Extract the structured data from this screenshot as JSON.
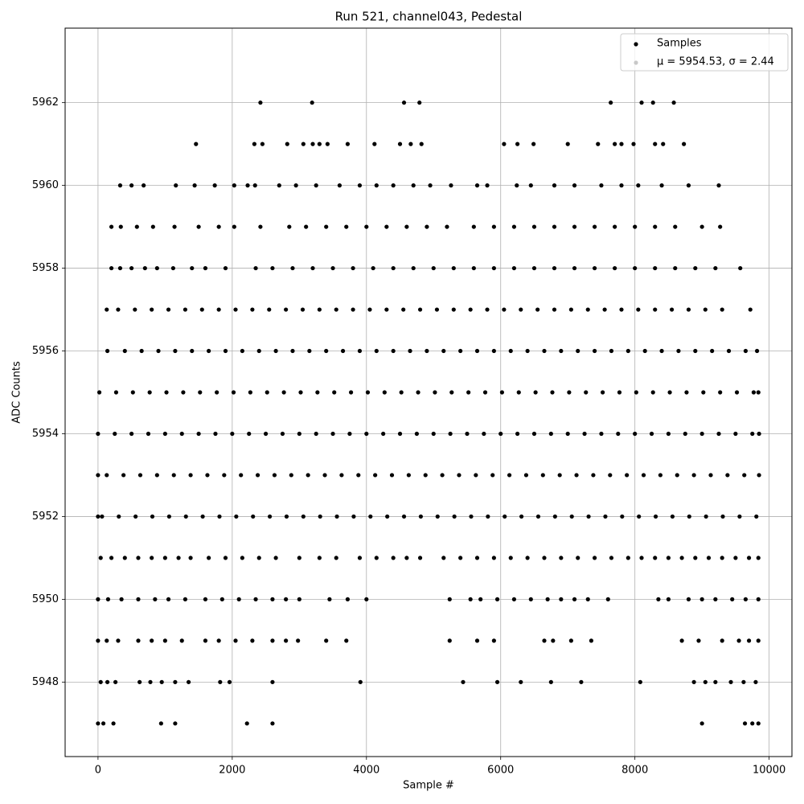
{
  "chart_data": {
    "type": "scatter",
    "title": "Run 521, channel043, Pedestal",
    "x_label": "Sample #",
    "y_label": "ADC Counts",
    "xlim": [
      -490,
      10340
    ],
    "ylim": [
      5946.2,
      5963.8
    ],
    "xticks": [
      0,
      2000,
      4000,
      6000,
      8000,
      10000
    ],
    "yticks": [
      5948,
      5950,
      5952,
      5954,
      5956,
      5958,
      5960,
      5962
    ],
    "grid": true,
    "legend": "upper right",
    "series": [
      {
        "name": "Samples",
        "color": "#000000",
        "x": [
          2420,
          3190,
          4560,
          4790,
          7640,
          8100,
          8270,
          8580,
          1460,
          2330,
          2450,
          2820,
          3060,
          3200,
          3300,
          3420,
          3720,
          4120,
          4500,
          4660,
          4820,
          6050,
          6250,
          6490,
          7000,
          7450,
          7700,
          7800,
          7980,
          8300,
          8420,
          8730,
          330,
          500,
          680,
          1160,
          1440,
          1740,
          2030,
          2230,
          2340,
          2700,
          2950,
          3250,
          3600,
          3900,
          4150,
          4400,
          4700,
          4950,
          5260,
          5650,
          5800,
          6240,
          6450,
          6800,
          7100,
          7500,
          7800,
          8050,
          8400,
          8800,
          9250,
          200,
          340,
          580,
          820,
          1140,
          1500,
          1800,
          2030,
          2420,
          2850,
          3100,
          3400,
          3700,
          4000,
          4300,
          4600,
          4900,
          5200,
          5600,
          5900,
          6200,
          6500,
          6800,
          7100,
          7400,
          7700,
          8000,
          8300,
          8600,
          9000,
          9270,
          200,
          330,
          500,
          700,
          880,
          1120,
          1400,
          1600,
          1900,
          2350,
          2600,
          2900,
          3200,
          3500,
          3800,
          4100,
          4400,
          4700,
          5000,
          5300,
          5600,
          5900,
          6200,
          6500,
          6800,
          7100,
          7400,
          7700,
          8000,
          8300,
          8600,
          8900,
          9200,
          9570,
          130,
          300,
          550,
          800,
          1050,
          1300,
          1550,
          1800,
          2050,
          2300,
          2550,
          2800,
          3050,
          3300,
          3550,
          3800,
          4050,
          4300,
          4550,
          4800,
          5050,
          5300,
          5550,
          5800,
          6050,
          6300,
          6550,
          6800,
          7050,
          7300,
          7550,
          7800,
          8050,
          8300,
          8550,
          8800,
          9050,
          9300,
          9720,
          140,
          400,
          650,
          900,
          1150,
          1400,
          1650,
          1900,
          2150,
          2400,
          2650,
          2900,
          3150,
          3400,
          3650,
          3900,
          4150,
          4400,
          4650,
          4900,
          5150,
          5400,
          5650,
          5900,
          6150,
          6400,
          6650,
          6900,
          7150,
          7400,
          7650,
          7900,
          8150,
          8400,
          8650,
          8900,
          9150,
          9400,
          9650,
          9820,
          20,
          270,
          520,
          770,
          1020,
          1270,
          1520,
          1770,
          2020,
          2270,
          2520,
          2770,
          3020,
          3270,
          3520,
          3770,
          4020,
          4270,
          4520,
          4770,
          5020,
          5270,
          5520,
          5770,
          6020,
          6270,
          6520,
          6770,
          7020,
          7270,
          7520,
          7770,
          8020,
          8270,
          8520,
          8770,
          9020,
          9270,
          9520,
          9770,
          9840,
          0,
          250,
          500,
          750,
          1000,
          1250,
          1500,
          1750,
          2000,
          2250,
          2500,
          2750,
          3000,
          3250,
          3500,
          3750,
          4000,
          4250,
          4500,
          4750,
          5000,
          5250,
          5500,
          5750,
          6000,
          6250,
          6500,
          6750,
          7000,
          7250,
          7500,
          7750,
          8000,
          8250,
          8500,
          8750,
          9000,
          9250,
          9500,
          9750,
          9850,
          0,
          130,
          380,
          630,
          880,
          1130,
          1380,
          1630,
          1880,
          2130,
          2380,
          2630,
          2880,
          3130,
          3380,
          3630,
          3880,
          4130,
          4380,
          4630,
          4880,
          5130,
          5380,
          5630,
          5880,
          6130,
          6380,
          6630,
          6880,
          7130,
          7380,
          7630,
          7880,
          8130,
          8380,
          8630,
          8880,
          9130,
          9380,
          9630,
          9850,
          0,
          60,
          310,
          560,
          810,
          1060,
          1310,
          1560,
          1810,
          2060,
          2310,
          2560,
          2810,
          3060,
          3310,
          3560,
          3810,
          4060,
          4310,
          4560,
          4810,
          5060,
          5310,
          5560,
          5810,
          6060,
          6310,
          6560,
          6810,
          7060,
          7310,
          7560,
          7810,
          8060,
          8310,
          8560,
          8810,
          9060,
          9310,
          9560,
          9810,
          40,
          200,
          400,
          600,
          800,
          1000,
          1200,
          1380,
          1650,
          1900,
          2150,
          2400,
          2650,
          3000,
          3300,
          3550,
          3900,
          4150,
          4400,
          4600,
          4800,
          5150,
          5400,
          5650,
          5900,
          6150,
          6400,
          6650,
          6900,
          7150,
          7400,
          7650,
          7900,
          8100,
          8300,
          8500,
          8700,
          8900,
          9100,
          9300,
          9500,
          9700,
          9840,
          0,
          150,
          350,
          600,
          850,
          1050,
          1300,
          1600,
          1850,
          2100,
          2350,
          2600,
          2800,
          3000,
          3450,
          3720,
          4000,
          5240,
          5550,
          5700,
          5950,
          6200,
          6450,
          6700,
          6900,
          7100,
          7300,
          7600,
          8350,
          8500,
          8800,
          9000,
          9200,
          9450,
          9650,
          9840,
          0,
          130,
          300,
          600,
          800,
          1000,
          1250,
          1600,
          1800,
          2050,
          2300,
          2600,
          2800,
          2980,
          3400,
          3700,
          5240,
          5650,
          5900,
          6650,
          6780,
          7050,
          7350,
          8700,
          8950,
          9300,
          9550,
          9700,
          9840,
          40,
          140,
          260,
          620,
          780,
          950,
          1150,
          1350,
          1820,
          1960,
          2600,
          3910,
          5440,
          5950,
          6300,
          6750,
          7200,
          8080,
          8880,
          9050,
          9200,
          9430,
          9620,
          9800,
          0,
          80,
          230,
          940,
          1150,
          2220,
          2600,
          9000,
          9640,
          9750,
          9840
        ],
        "values": [
          5962,
          5962,
          5962,
          5962,
          5962,
          5962,
          5962,
          5962,
          5961,
          5961,
          5961,
          5961,
          5961,
          5961,
          5961,
          5961,
          5961,
          5961,
          5961,
          5961,
          5961,
          5961,
          5961,
          5961,
          5961,
          5961,
          5961,
          5961,
          5961,
          5961,
          5961,
          5961,
          5960,
          5960,
          5960,
          5960,
          5960,
          5960,
          5960,
          5960,
          5960,
          5960,
          5960,
          5960,
          5960,
          5960,
          5960,
          5960,
          5960,
          5960,
          5960,
          5960,
          5960,
          5960,
          5960,
          5960,
          5960,
          5960,
          5960,
          5960,
          5960,
          5960,
          5960,
          5959,
          5959,
          5959,
          5959,
          5959,
          5959,
          5959,
          5959,
          5959,
          5959,
          5959,
          5959,
          5959,
          5959,
          5959,
          5959,
          5959,
          5959,
          5959,
          5959,
          5959,
          5959,
          5959,
          5959,
          5959,
          5959,
          5959,
          5959,
          5959,
          5959,
          5959,
          5958,
          5958,
          5958,
          5958,
          5958,
          5958,
          5958,
          5958,
          5958,
          5958,
          5958,
          5958,
          5958,
          5958,
          5958,
          5958,
          5958,
          5958,
          5958,
          5958,
          5958,
          5958,
          5958,
          5958,
          5958,
          5958,
          5958,
          5958,
          5958,
          5958,
          5958,
          5958,
          5958,
          5958,
          5957,
          5957,
          5957,
          5957,
          5957,
          5957,
          5957,
          5957,
          5957,
          5957,
          5957,
          5957,
          5957,
          5957,
          5957,
          5957,
          5957,
          5957,
          5957,
          5957,
          5957,
          5957,
          5957,
          5957,
          5957,
          5957,
          5957,
          5957,
          5957,
          5957,
          5957,
          5957,
          5957,
          5957,
          5957,
          5957,
          5957,
          5957,
          5957,
          5956,
          5956,
          5956,
          5956,
          5956,
          5956,
          5956,
          5956,
          5956,
          5956,
          5956,
          5956,
          5956,
          5956,
          5956,
          5956,
          5956,
          5956,
          5956,
          5956,
          5956,
          5956,
          5956,
          5956,
          5956,
          5956,
          5956,
          5956,
          5956,
          5956,
          5956,
          5956,
          5956,
          5956,
          5956,
          5956,
          5956,
          5956,
          5956,
          5956,
          5955,
          5955,
          5955,
          5955,
          5955,
          5955,
          5955,
          5955,
          5955,
          5955,
          5955,
          5955,
          5955,
          5955,
          5955,
          5955,
          5955,
          5955,
          5955,
          5955,
          5955,
          5955,
          5955,
          5955,
          5955,
          5955,
          5955,
          5955,
          5955,
          5955,
          5955,
          5955,
          5955,
          5955,
          5955,
          5955,
          5955,
          5955,
          5955,
          5955,
          5955,
          5954,
          5954,
          5954,
          5954,
          5954,
          5954,
          5954,
          5954,
          5954,
          5954,
          5954,
          5954,
          5954,
          5954,
          5954,
          5954,
          5954,
          5954,
          5954,
          5954,
          5954,
          5954,
          5954,
          5954,
          5954,
          5954,
          5954,
          5954,
          5954,
          5954,
          5954,
          5954,
          5954,
          5954,
          5954,
          5954,
          5954,
          5954,
          5954,
          5954,
          5954,
          5953,
          5953,
          5953,
          5953,
          5953,
          5953,
          5953,
          5953,
          5953,
          5953,
          5953,
          5953,
          5953,
          5953,
          5953,
          5953,
          5953,
          5953,
          5953,
          5953,
          5953,
          5953,
          5953,
          5953,
          5953,
          5953,
          5953,
          5953,
          5953,
          5953,
          5953,
          5953,
          5953,
          5953,
          5953,
          5953,
          5953,
          5953,
          5953,
          5953,
          5953,
          5952,
          5952,
          5952,
          5952,
          5952,
          5952,
          5952,
          5952,
          5952,
          5952,
          5952,
          5952,
          5952,
          5952,
          5952,
          5952,
          5952,
          5952,
          5952,
          5952,
          5952,
          5952,
          5952,
          5952,
          5952,
          5952,
          5952,
          5952,
          5952,
          5952,
          5952,
          5952,
          5952,
          5952,
          5952,
          5952,
          5952,
          5952,
          5952,
          5952,
          5952,
          5951,
          5951,
          5951,
          5951,
          5951,
          5951,
          5951,
          5951,
          5951,
          5951,
          5951,
          5951,
          5951,
          5951,
          5951,
          5951,
          5951,
          5951,
          5951,
          5951,
          5951,
          5951,
          5951,
          5951,
          5951,
          5951,
          5951,
          5951,
          5951,
          5951,
          5951,
          5951,
          5951,
          5951,
          5951,
          5951,
          5951,
          5951,
          5951,
          5951,
          5951,
          5951,
          5951,
          5950,
          5950,
          5950,
          5950,
          5950,
          5950,
          5950,
          5950,
          5950,
          5950,
          5950,
          5950,
          5950,
          5950,
          5950,
          5950,
          5950,
          5950,
          5950,
          5950,
          5950,
          5950,
          5950,
          5950,
          5950,
          5950,
          5950,
          5950,
          5950,
          5950,
          5950,
          5950,
          5950,
          5950,
          5950,
          5950,
          5949,
          5949,
          5949,
          5949,
          5949,
          5949,
          5949,
          5949,
          5949,
          5949,
          5949,
          5949,
          5949,
          5949,
          5949,
          5949,
          5949,
          5949,
          5949,
          5949,
          5949,
          5949,
          5949,
          5949,
          5949,
          5949,
          5949,
          5949,
          5949,
          5948,
          5948,
          5948,
          5948,
          5948,
          5948,
          5948,
          5948,
          5948,
          5948,
          5948,
          5948,
          5948,
          5948,
          5948,
          5948,
          5948,
          5948,
          5948,
          5948,
          5948,
          5948,
          5948,
          5948,
          5947,
          5947,
          5947,
          5947,
          5947,
          5947,
          5947,
          5947,
          5947,
          5947,
          5947
        ]
      },
      {
        "name": "μ = 5954.53, σ = 2.44",
        "color": "#c8c8c8",
        "x": [],
        "values": []
      }
    ]
  }
}
